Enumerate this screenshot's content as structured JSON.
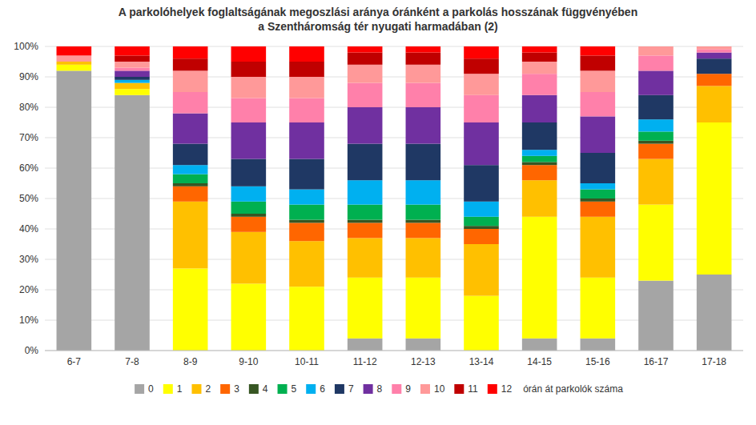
{
  "chart_data": {
    "type": "bar",
    "stacked": true,
    "title": "A parkolóhelyek foglaltságának megoszlási aránya óránként a parkolás hosszának függvényében\na Szentháromság tér nyugati harmadában  (2)",
    "categories": [
      "6-7",
      "7-8",
      "8-9",
      "9-10",
      "10-11",
      "11-12",
      "12-13",
      "13-14",
      "14-15",
      "15-16",
      "16-17",
      "17-18"
    ],
    "series": [
      {
        "name": "0",
        "color": "#a5a5a5",
        "values": [
          92,
          84,
          0,
          0,
          0,
          4,
          4,
          0,
          4,
          4,
          23,
          25
        ]
      },
      {
        "name": "1",
        "color": "#ffff00",
        "values": [
          2,
          2,
          27,
          22,
          21,
          20,
          20,
          18,
          40,
          20,
          25,
          50
        ]
      },
      {
        "name": "2",
        "color": "#ffc000",
        "values": [
          1,
          2,
          22,
          17,
          15,
          13,
          13,
          17,
          12,
          20,
          15,
          12
        ]
      },
      {
        "name": "3",
        "color": "#ff6600",
        "values": [
          0,
          0,
          5,
          5,
          6,
          5,
          5,
          5,
          5,
          5,
          5,
          4
        ]
      },
      {
        "name": "4",
        "color": "#375623",
        "values": [
          0,
          0,
          1,
          1,
          1,
          1,
          1,
          1,
          1,
          1,
          1,
          0
        ]
      },
      {
        "name": "5",
        "color": "#00b050",
        "values": [
          0,
          0,
          3,
          4,
          5,
          5,
          5,
          3,
          2,
          3,
          3,
          0
        ]
      },
      {
        "name": "6",
        "color": "#00b0f0",
        "values": [
          0,
          1,
          3,
          5,
          5,
          8,
          8,
          5,
          2,
          2,
          4,
          0
        ]
      },
      {
        "name": "7",
        "color": "#1f3864",
        "values": [
          0,
          1,
          7,
          9,
          10,
          12,
          12,
          12,
          9,
          10,
          8,
          5
        ]
      },
      {
        "name": "8",
        "color": "#7030a0",
        "values": [
          0,
          2,
          10,
          12,
          12,
          12,
          12,
          14,
          9,
          12,
          8,
          2
        ]
      },
      {
        "name": "9",
        "color": "#ff80aa",
        "values": [
          0,
          1,
          7,
          8,
          8,
          8,
          8,
          9,
          7,
          8,
          5,
          1
        ]
      },
      {
        "name": "10",
        "color": "#ff9999",
        "values": [
          2,
          2,
          7,
          7,
          7,
          6,
          6,
          7,
          4,
          7,
          3,
          1
        ]
      },
      {
        "name": "11",
        "color": "#c00000",
        "values": [
          0,
          2,
          4,
          5,
          5,
          4,
          4,
          5,
          3,
          5,
          0,
          0
        ]
      },
      {
        "name": "12",
        "color": "#ff0000",
        "values": [
          3,
          3,
          4,
          5,
          5,
          2,
          2,
          4,
          2,
          3,
          0,
          0
        ]
      }
    ],
    "annotations": [
      "órán át parkolók száma"
    ],
    "ylim": [
      0,
      100
    ],
    "yticks": [
      {
        "value": 0,
        "label": "0%"
      },
      {
        "value": 10,
        "label": "10%"
      },
      {
        "value": 20,
        "label": "20%"
      },
      {
        "value": 30,
        "label": "30%"
      },
      {
        "value": 40,
        "label": "40%"
      },
      {
        "value": 50,
        "label": "50%"
      },
      {
        "value": 60,
        "label": "60%"
      },
      {
        "value": 70,
        "label": "70%"
      },
      {
        "value": 80,
        "label": "80%"
      },
      {
        "value": 90,
        "label": "90%"
      },
      {
        "value": 100,
        "label": "100%"
      }
    ],
    "grid": true,
    "legend": "bottom"
  }
}
